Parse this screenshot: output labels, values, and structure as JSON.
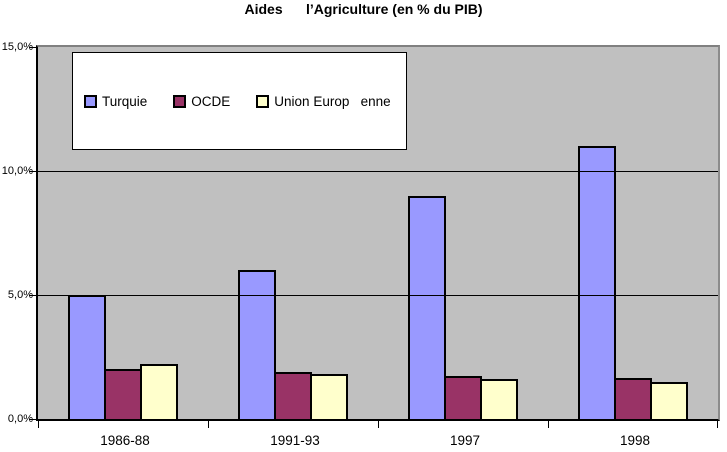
{
  "chart_data": {
    "type": "bar",
    "title": "Aides      l’Agriculture (en % du PIB)",
    "categories": [
      "1986-88",
      "1991-93",
      "1997",
      "1998"
    ],
    "series": [
      {
        "name": "Turquie",
        "color": "#9999FF",
        "values": [
          5.0,
          6.0,
          9.0,
          11.0
        ]
      },
      {
        "name": "OCDE",
        "color": "#993366",
        "values": [
          2.0,
          1.9,
          1.75,
          1.65
        ]
      },
      {
        "name": "Union Europ   enne",
        "color": "#FFFFCC",
        "values": [
          2.2,
          1.8,
          1.6,
          1.5
        ]
      }
    ],
    "xlabel": "",
    "ylabel": "",
    "ylim": [
      0,
      15
    ],
    "yticks": [
      {
        "value": 0,
        "label": "0,0%"
      },
      {
        "value": 5,
        "label": "5,0%"
      },
      {
        "value": 10,
        "label": "10,0%"
      },
      {
        "value": 15,
        "label": "15,0%"
      }
    ],
    "grid": "horizontal",
    "legend_position": "top-left-inside",
    "colors": {
      "plot_background": "#C0C0C0",
      "plot_border": "#808080",
      "gridline": "#000000",
      "axis": "#000000",
      "bar_outline": "#000000"
    }
  }
}
